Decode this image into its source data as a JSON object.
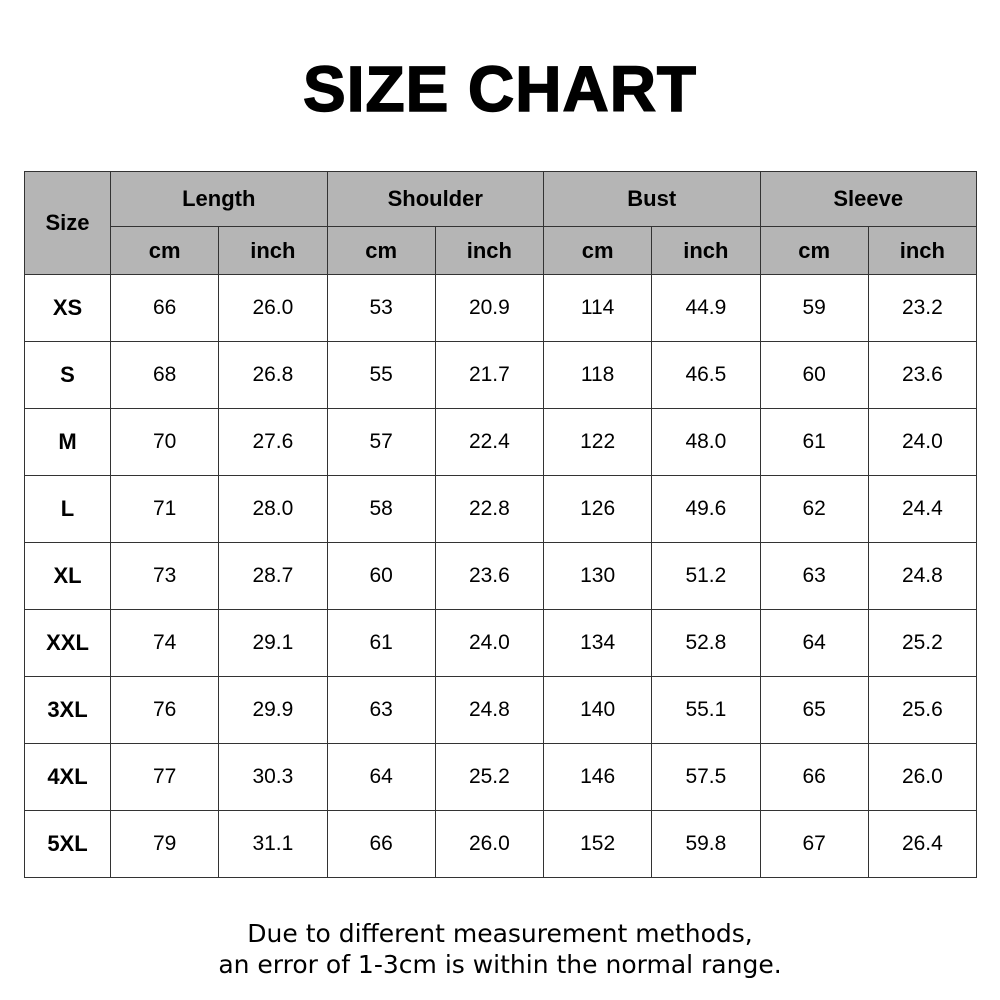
{
  "title": "SIZE CHART",
  "table": {
    "size_header": "Size",
    "groups": [
      "Length",
      "Shoulder",
      "Bust",
      "Sleeve"
    ],
    "units": [
      "cm",
      "inch"
    ],
    "rows": [
      {
        "size": "XS",
        "values": [
          "66",
          "26.0",
          "53",
          "20.9",
          "114",
          "44.9",
          "59",
          "23.2"
        ]
      },
      {
        "size": "S",
        "values": [
          "68",
          "26.8",
          "55",
          "21.7",
          "118",
          "46.5",
          "60",
          "23.6"
        ]
      },
      {
        "size": "M",
        "values": [
          "70",
          "27.6",
          "57",
          "22.4",
          "122",
          "48.0",
          "61",
          "24.0"
        ]
      },
      {
        "size": "L",
        "values": [
          "71",
          "28.0",
          "58",
          "22.8",
          "126",
          "49.6",
          "62",
          "24.4"
        ]
      },
      {
        "size": "XL",
        "values": [
          "73",
          "28.7",
          "60",
          "23.6",
          "130",
          "51.2",
          "63",
          "24.8"
        ]
      },
      {
        "size": "XXL",
        "values": [
          "74",
          "29.1",
          "61",
          "24.0",
          "134",
          "52.8",
          "64",
          "25.2"
        ]
      },
      {
        "size": "3XL",
        "values": [
          "76",
          "29.9",
          "63",
          "24.8",
          "140",
          "55.1",
          "65",
          "25.6"
        ]
      },
      {
        "size": "4XL",
        "values": [
          "77",
          "30.3",
          "64",
          "25.2",
          "146",
          "57.5",
          "66",
          "26.0"
        ]
      },
      {
        "size": "5XL",
        "values": [
          "79",
          "31.1",
          "66",
          "26.0",
          "152",
          "59.8",
          "67",
          "26.4"
        ]
      }
    ]
  },
  "note": {
    "line1": "Due to different measurement methods,",
    "line2": "an error of 1-3cm is within the normal range."
  },
  "colors": {
    "header_bg": "#b5b5b5",
    "border": "#333333"
  }
}
